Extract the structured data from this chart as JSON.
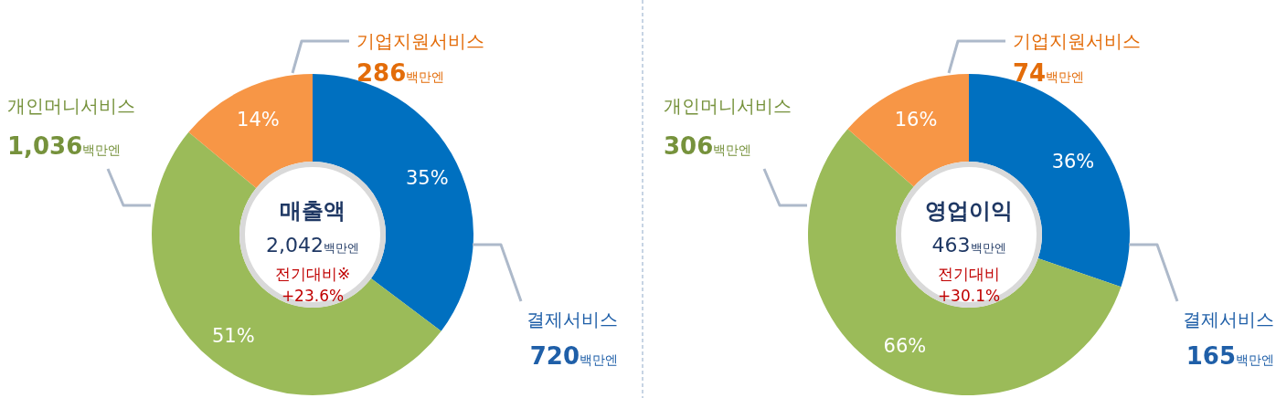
{
  "chart_data": [
    {
      "type": "donut",
      "title": "매출액",
      "subtitle": "2,042백만엔",
      "categories": [
        "결제서비스",
        "개인머니서비스",
        "기업지원서비스"
      ],
      "values": [
        720,
        1036,
        286
      ],
      "colors": [
        "#0070c0",
        "#9bbb59",
        "#f79646"
      ],
      "value_labels": [
        "720백만엔",
        "1,036백만엔",
        "286백만엔"
      ],
      "annotations": [
        {
          "text": "35%",
          "x": "결제서비스"
        },
        {
          "text": "51%",
          "x": "개인머니서비스"
        },
        {
          "text": "14%",
          "x": "기업지원서비스"
        },
        "전기대비※",
        "+23.6%"
      ]
    },
    {
      "type": "donut",
      "title": "영업이익",
      "subtitle": "463백만엔",
      "categories": [
        "결제서비스",
        "개인머니서비스",
        "기업지원서비스"
      ],
      "values": [
        165,
        306,
        74
      ],
      "colors": [
        "#0070c0",
        "#9bbb59",
        "#f79646"
      ],
      "value_labels": [
        "165백만엔",
        "306백만엔",
        "74백만엔"
      ],
      "annotations": [
        {
          "text": "36%",
          "x": "결제서비스"
        },
        {
          "text": "66%",
          "x": "개인머니서비스"
        },
        {
          "text": "16%",
          "x": "기업지원서비스"
        },
        "전기대비",
        "+30.1%"
      ]
    }
  ]
}
